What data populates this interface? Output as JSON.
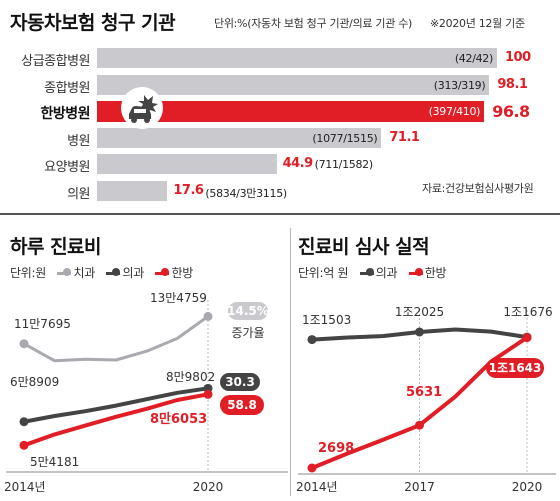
{
  "top": {
    "title": "자동차보험 청구 기관",
    "unit_note": "단위:%(자동차 보험 청구 기관/의료 기관 수)",
    "date_note": "※2020년 12월 기준",
    "source": "자료:건강보험심사평가원"
  },
  "left_chart": {
    "title": "하루 진료비",
    "unit": "단위:원",
    "legend": [
      "치과",
      "의과",
      "한방"
    ],
    "rate_value": "14.5%",
    "rate_label": "증가율",
    "x_ticks": [
      "2014년",
      "2020"
    ],
    "labels": {
      "dental_start": "11만7695",
      "dental_end": "13만4759",
      "medical_start": "6만8909",
      "medical_end": "8만9802",
      "korean_start": "5만4181",
      "korean_end": "8만6053",
      "rate_medical": "30.3",
      "rate_korean": "58.8"
    }
  },
  "right_chart": {
    "title": "진료비 심사 실적",
    "unit": "단위:억 원",
    "legend": [
      "의과",
      "한방"
    ],
    "x_ticks": [
      "2014년",
      "2017",
      "2020"
    ],
    "labels": {
      "medical_start": "1조1503",
      "medical_mid": "1조2025",
      "medical_end": "1조1676",
      "korean_start": "2698",
      "korean_mid": "5631",
      "korean_end": "1조1643"
    }
  },
  "colors": {
    "red": "#e11d26",
    "dark": "#444444",
    "gray": "#c9c9ce",
    "dental": "#a9a9b0"
  },
  "chart_data": [
    {
      "type": "bar",
      "title": "자동차보험 청구 기관",
      "orientation": "horizontal",
      "categories": [
        "상급종합병원",
        "종합병원",
        "한방병원",
        "병원",
        "요양병원",
        "의원"
      ],
      "values": [
        100,
        98.1,
        96.8,
        71.1,
        44.9,
        17.6
      ],
      "value_labels": [
        "100",
        "98.1",
        "96.8",
        "71.1",
        "44.9",
        "17.6"
      ],
      "counts": [
        "(42/42)",
        "(313/319)",
        "(397/410)",
        "(1077/1515)",
        "(711/1582)",
        "(5834/3만3115)"
      ],
      "highlight": "한방병원",
      "xlim": [
        0,
        100
      ]
    },
    {
      "type": "line",
      "title": "하루 진료비",
      "x": [
        2014,
        2015,
        2016,
        2017,
        2018,
        2019,
        2020
      ],
      "series": [
        {
          "name": "치과",
          "values": [
            117695,
            107000,
            108000,
            107500,
            113000,
            121000,
            134759
          ]
        },
        {
          "name": "의과",
          "values": [
            68909,
            72500,
            75500,
            79000,
            83000,
            87000,
            89802
          ]
        },
        {
          "name": "한방",
          "values": [
            54181,
            61000,
            66500,
            72000,
            77000,
            82500,
            86053
          ]
        }
      ],
      "annotations": {
        "치과": "14.5%",
        "의과": "30.3",
        "한방": "58.8"
      }
    },
    {
      "type": "line",
      "title": "진료비 심사 실적",
      "x": [
        2014,
        2015,
        2016,
        2017,
        2018,
        2019,
        2020
      ],
      "series": [
        {
          "name": "의과",
          "values": [
            11503,
            11650,
            11750,
            12025,
            12200,
            12050,
            11676
          ]
        },
        {
          "name": "한방",
          "values": [
            2698,
            3700,
            4650,
            5631,
            7600,
            10000,
            11643
          ]
        }
      ]
    }
  ]
}
